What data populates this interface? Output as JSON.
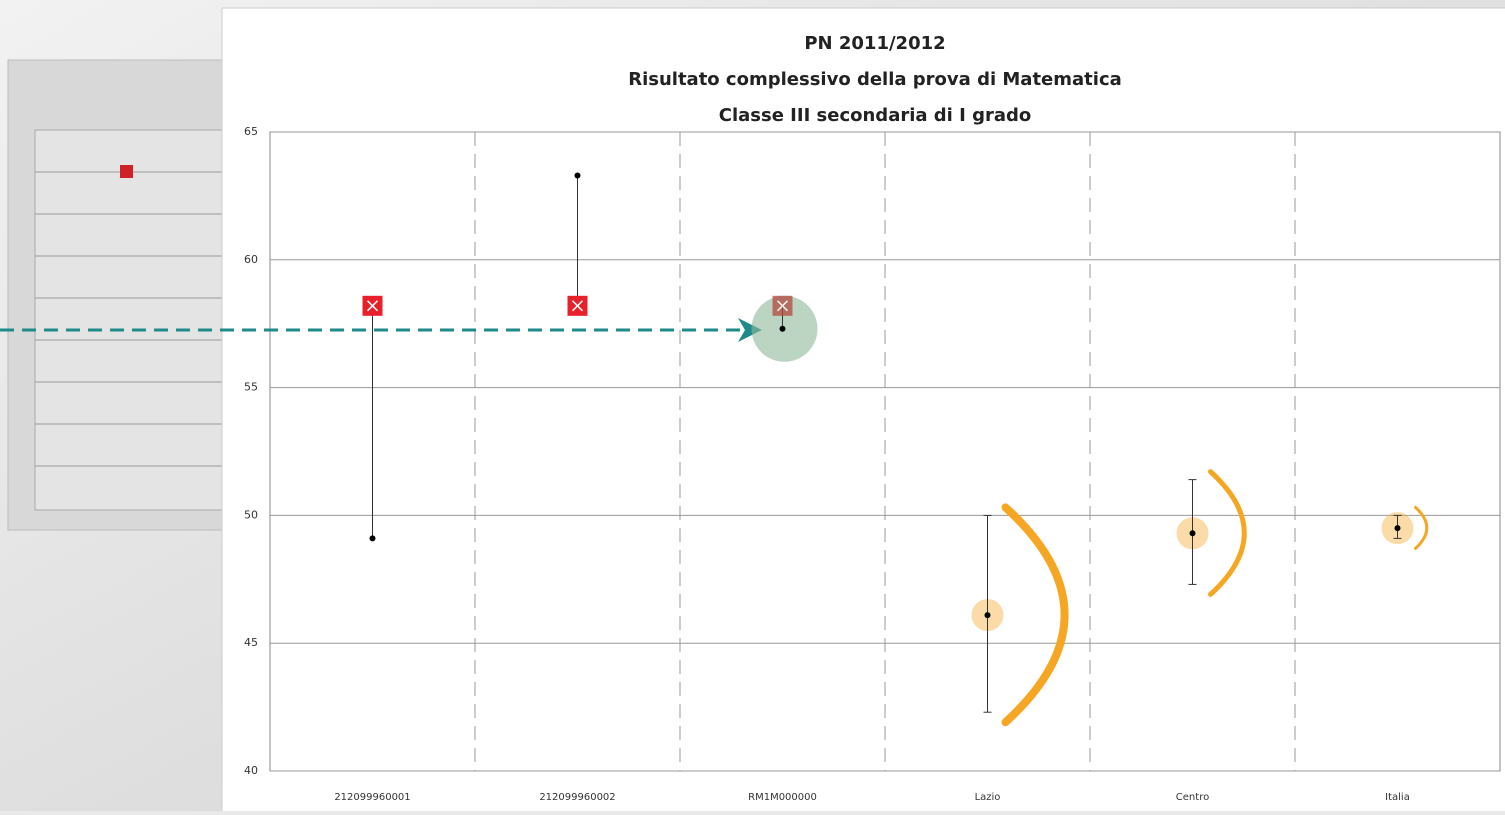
{
  "chart_data": {
    "type": "dot",
    "title": [
      "PN 2011/2012",
      "Risultato complessivo della prova di Matematica",
      "Classe III secondaria di I grado"
    ],
    "categories": [
      "212099960001",
      "212099960002",
      "RM1M000000",
      "Lazio",
      "Centro",
      "Italia"
    ],
    "markers": [
      58.2,
      58.2,
      58.2,
      null,
      null,
      null
    ],
    "points": [
      49.1,
      63.3,
      57.3,
      46.1,
      49.3,
      49.5
    ],
    "lower": [
      null,
      null,
      null,
      42.3,
      47.3,
      49.1
    ],
    "upper": [
      null,
      null,
      null,
      50.0,
      51.4,
      50.0
    ],
    "marker_color": "#e8202a",
    "point_color": "#000000",
    "highlight_color": "#f5a623",
    "ylim": [
      40,
      65
    ],
    "yticks": [
      40,
      45,
      50,
      55,
      60,
      65
    ],
    "grid": true
  }
}
